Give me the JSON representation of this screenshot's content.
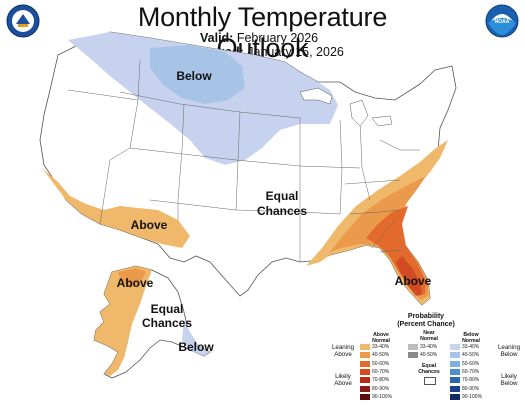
{
  "header": {
    "title": "Monthly Temperature Outlook",
    "valid_label": "Valid:",
    "valid_value": "February 2026",
    "issued_label": "Issued:",
    "issued_value": "January 15, 2026"
  },
  "logos": {
    "left": "department-of-commerce-seal",
    "right": "noaa-logo"
  },
  "map_labels": {
    "below_north": "Below",
    "equal_conus_1": "Equal",
    "equal_conus_2": "Chances",
    "above_southwest": "Above",
    "above_southeast": "Above",
    "above_alaska": "Above",
    "equal_alaska_1": "Equal",
    "equal_alaska_2": "Chances",
    "below_alaska": "Below"
  },
  "legend": {
    "title_1": "Probability",
    "title_2": "(Percent Chance)",
    "above_header": [
      "Above",
      "Normal"
    ],
    "near_header": [
      "Near",
      "Normal"
    ],
    "below_header": [
      "Below",
      "Normal"
    ],
    "leaning_above": [
      "Leaning",
      "Above"
    ],
    "likely_above": [
      "Likely",
      "Above"
    ],
    "leaning_below": [
      "Leaning",
      "Below"
    ],
    "likely_below": [
      "Likely",
      "Below"
    ],
    "equal_chances": [
      "Equal",
      "Chances"
    ],
    "above_bins": [
      {
        "label": "33-40%",
        "color": "#f0b86a"
      },
      {
        "label": "40-50%",
        "color": "#eb9a4c"
      },
      {
        "label": "50-60%",
        "color": "#e26a2c"
      },
      {
        "label": "60-70%",
        "color": "#d14a22"
      },
      {
        "label": "70-80%",
        "color": "#b32c1a"
      },
      {
        "label": "80-90%",
        "color": "#8c1c14"
      },
      {
        "label": "90-100%",
        "color": "#5e0f0c"
      }
    ],
    "near_bins": [
      {
        "label": "33-40%",
        "color": "#bdbdbd"
      },
      {
        "label": "40-50%",
        "color": "#8a8a8a"
      }
    ],
    "below_bins": [
      {
        "label": "33-40%",
        "color": "#c7d3ee"
      },
      {
        "label": "40-50%",
        "color": "#a7c3e6"
      },
      {
        "label": "50-60%",
        "color": "#7fb0de"
      },
      {
        "label": "60-70%",
        "color": "#4f8fd0"
      },
      {
        "label": "70-80%",
        "color": "#2f64b3"
      },
      {
        "label": "80-90%",
        "color": "#1d3f8c"
      },
      {
        "label": "90-100%",
        "color": "#142a63"
      }
    ]
  }
}
